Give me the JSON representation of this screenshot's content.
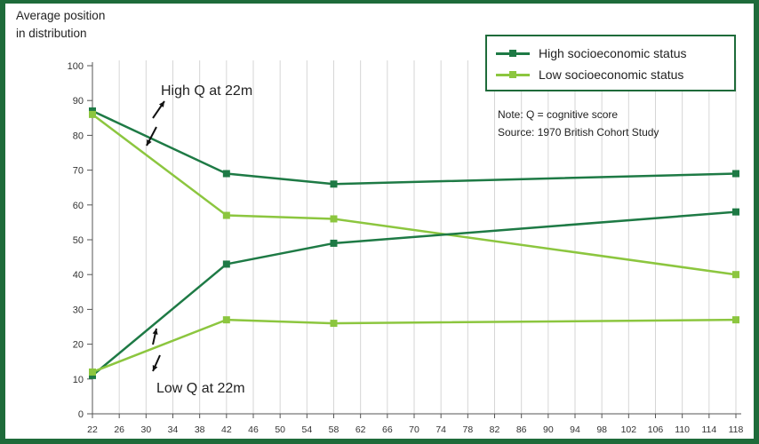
{
  "chart_data": {
    "type": "line",
    "ylabel_lines": [
      "Average position",
      "in distribution"
    ],
    "xlabel": "",
    "title": "",
    "x_ticks": [
      22,
      26,
      30,
      34,
      38,
      42,
      46,
      50,
      54,
      58,
      62,
      66,
      70,
      74,
      78,
      82,
      86,
      90,
      94,
      98,
      102,
      106,
      110,
      114,
      118
    ],
    "y_ticks": [
      0,
      10,
      20,
      30,
      40,
      50,
      60,
      70,
      80,
      90,
      100
    ],
    "xlim": [
      22,
      118
    ],
    "ylim": [
      0,
      100
    ],
    "grid": "vertical",
    "legend_position": "top-right",
    "legend": [
      {
        "label": "High socioeconomic status",
        "color": "#1e7a45"
      },
      {
        "label": "Low socioeconomic status",
        "color": "#8cc63f"
      }
    ],
    "series": [
      {
        "group": "High socioeconomic status",
        "color": "#1e7a45",
        "x": [
          22,
          42,
          58,
          118
        ],
        "y": [
          87,
          69,
          66,
          69
        ]
      },
      {
        "group": "Low socioeconomic status",
        "color": "#8cc63f",
        "x": [
          22,
          42,
          58,
          118
        ],
        "y": [
          86,
          57,
          56,
          40
        ]
      },
      {
        "group": "High socioeconomic status",
        "color": "#1e7a45",
        "x": [
          22,
          42,
          58,
          118
        ],
        "y": [
          11,
          43,
          49,
          58
        ]
      },
      {
        "group": "Low socioeconomic status",
        "color": "#8cc63f",
        "x": [
          22,
          42,
          58,
          118
        ],
        "y": [
          12,
          27,
          26,
          27
        ]
      }
    ],
    "annotations": {
      "high_q": "High Q at 22m",
      "low_q": "Low Q at 22m"
    },
    "notes": [
      "Note: Q = cognitive score",
      "Source: 1970 British Cohort Study"
    ]
  }
}
